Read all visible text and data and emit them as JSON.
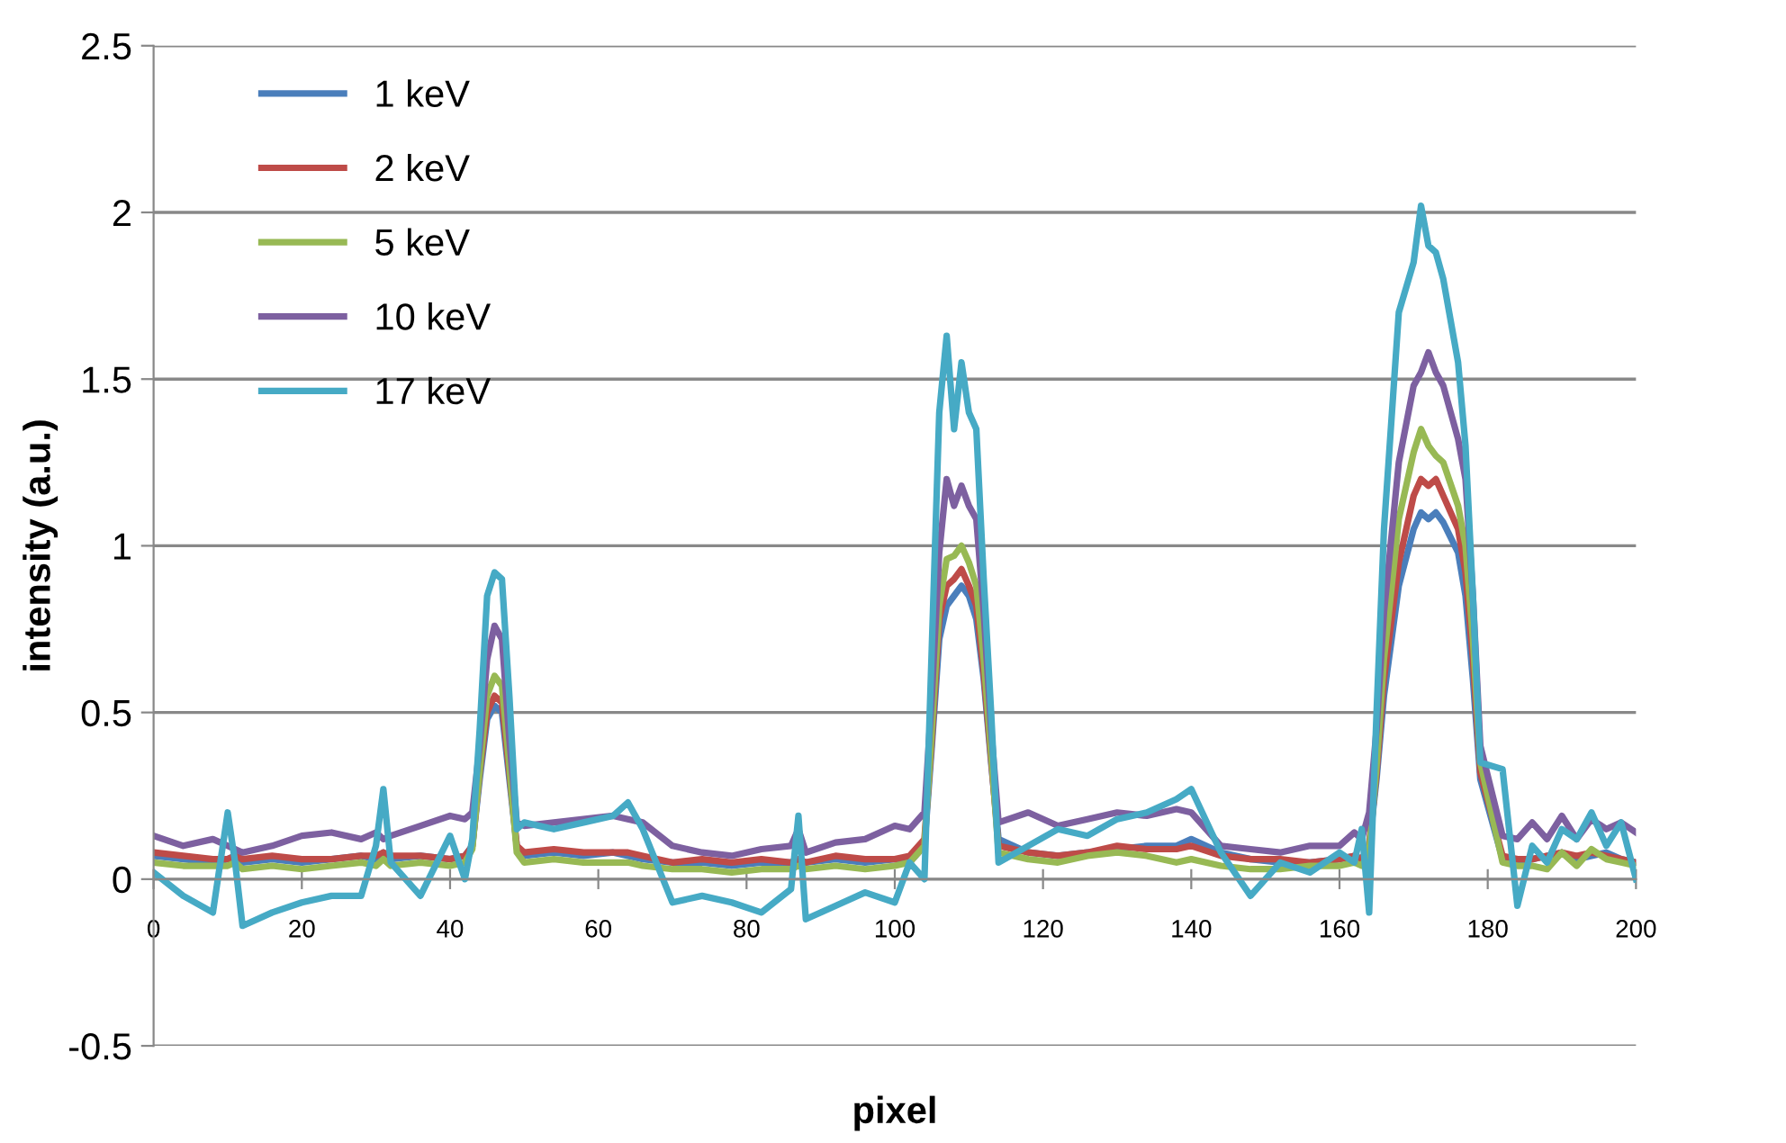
{
  "chart_data": {
    "type": "line",
    "xlabel": "pixel",
    "ylabel": "intensity (a.u.)",
    "x": [
      0,
      4,
      8,
      10,
      11,
      12,
      16,
      20,
      24,
      28,
      30,
      31,
      32,
      36,
      40,
      42,
      43,
      44,
      45,
      46,
      47,
      48,
      49,
      50,
      54,
      58,
      62,
      64,
      66,
      70,
      74,
      78,
      82,
      86,
      87,
      88,
      92,
      96,
      100,
      102,
      104,
      105,
      106,
      107,
      108,
      109,
      110,
      111,
      112,
      113,
      114,
      118,
      122,
      126,
      130,
      134,
      138,
      140,
      144,
      148,
      152,
      156,
      160,
      162,
      163,
      164,
      165,
      166,
      168,
      170,
      171,
      172,
      173,
      174,
      176,
      177,
      178,
      179,
      182,
      184,
      186,
      188,
      190,
      192,
      194,
      196,
      198,
      200
    ],
    "xlim": [
      0,
      200
    ],
    "xticks": [
      0,
      20,
      40,
      60,
      80,
      100,
      120,
      140,
      160,
      180,
      200
    ],
    "ylim": [
      -0.5,
      2.5
    ],
    "yticks": [
      -0.5,
      0,
      0.5,
      1,
      1.5,
      2,
      2.5
    ],
    "grid": "y",
    "legend": "top left",
    "marker": "none",
    "line_style": "solid",
    "series": [
      {
        "name": "1 keV",
        "color": "#4a7ebb",
        "values": [
          0.07,
          0.06,
          0.05,
          0.06,
          0.07,
          0.05,
          0.06,
          0.05,
          0.06,
          0.07,
          0.06,
          0.08,
          0.06,
          0.07,
          0.06,
          0.07,
          0.1,
          0.3,
          0.48,
          0.52,
          0.5,
          0.3,
          0.1,
          0.07,
          0.08,
          0.07,
          0.08,
          0.07,
          0.06,
          0.05,
          0.05,
          0.04,
          0.05,
          0.05,
          0.06,
          0.05,
          0.06,
          0.05,
          0.06,
          0.05,
          0.1,
          0.4,
          0.72,
          0.82,
          0.85,
          0.88,
          0.85,
          0.78,
          0.6,
          0.35,
          0.12,
          0.08,
          0.07,
          0.08,
          0.09,
          0.1,
          0.1,
          0.12,
          0.08,
          0.06,
          0.05,
          0.05,
          0.06,
          0.07,
          0.06,
          0.1,
          0.3,
          0.55,
          0.88,
          1.05,
          1.1,
          1.08,
          1.1,
          1.07,
          0.98,
          0.85,
          0.6,
          0.3,
          0.06,
          0.05,
          0.06,
          0.07,
          0.08,
          0.06,
          0.07,
          0.08,
          0.06,
          0.05
        ]
      },
      {
        "name": "2 keV",
        "color": "#be4b48",
        "values": [
          0.08,
          0.07,
          0.06,
          0.06,
          0.07,
          0.06,
          0.07,
          0.06,
          0.06,
          0.07,
          0.07,
          0.08,
          0.07,
          0.07,
          0.06,
          0.07,
          0.1,
          0.32,
          0.5,
          0.55,
          0.53,
          0.32,
          0.1,
          0.08,
          0.09,
          0.08,
          0.08,
          0.08,
          0.07,
          0.05,
          0.06,
          0.05,
          0.06,
          0.05,
          0.06,
          0.05,
          0.07,
          0.06,
          0.06,
          0.07,
          0.12,
          0.42,
          0.78,
          0.88,
          0.9,
          0.93,
          0.88,
          0.82,
          0.62,
          0.36,
          0.1,
          0.08,
          0.07,
          0.08,
          0.1,
          0.09,
          0.09,
          0.1,
          0.07,
          0.06,
          0.06,
          0.05,
          0.06,
          0.07,
          0.06,
          0.1,
          0.32,
          0.6,
          0.95,
          1.15,
          1.2,
          1.18,
          1.2,
          1.15,
          1.05,
          0.92,
          0.66,
          0.32,
          0.07,
          0.06,
          0.06,
          0.07,
          0.08,
          0.07,
          0.08,
          0.07,
          0.06,
          0.05
        ]
      },
      {
        "name": "5 keV",
        "color": "#98b954",
        "values": [
          0.05,
          0.04,
          0.04,
          0.04,
          0.05,
          0.03,
          0.04,
          0.03,
          0.04,
          0.05,
          0.04,
          0.06,
          0.04,
          0.05,
          0.04,
          0.05,
          0.09,
          0.33,
          0.55,
          0.61,
          0.58,
          0.34,
          0.08,
          0.05,
          0.06,
          0.05,
          0.05,
          0.05,
          0.04,
          0.03,
          0.03,
          0.02,
          0.03,
          0.03,
          0.04,
          0.03,
          0.04,
          0.03,
          0.04,
          0.05,
          0.1,
          0.45,
          0.82,
          0.96,
          0.97,
          1.0,
          0.95,
          0.88,
          0.66,
          0.38,
          0.08,
          0.06,
          0.05,
          0.07,
          0.08,
          0.07,
          0.05,
          0.06,
          0.04,
          0.03,
          0.03,
          0.04,
          0.04,
          0.05,
          0.04,
          0.08,
          0.34,
          0.66,
          1.08,
          1.28,
          1.35,
          1.3,
          1.27,
          1.25,
          1.12,
          1.0,
          0.72,
          0.35,
          0.05,
          0.04,
          0.04,
          0.03,
          0.08,
          0.04,
          0.09,
          0.06,
          0.05,
          0.04
        ]
      },
      {
        "name": "10 keV",
        "color": "#7d60a0",
        "values": [
          0.13,
          0.1,
          0.12,
          0.1,
          0.09,
          0.08,
          0.1,
          0.13,
          0.14,
          0.12,
          0.14,
          0.12,
          0.13,
          0.16,
          0.19,
          0.18,
          0.2,
          0.4,
          0.66,
          0.76,
          0.72,
          0.42,
          0.17,
          0.16,
          0.17,
          0.18,
          0.19,
          0.18,
          0.17,
          0.1,
          0.08,
          0.07,
          0.09,
          0.1,
          0.15,
          0.08,
          0.11,
          0.12,
          0.16,
          0.15,
          0.2,
          0.55,
          0.98,
          1.2,
          1.12,
          1.18,
          1.12,
          1.08,
          0.8,
          0.45,
          0.17,
          0.2,
          0.16,
          0.18,
          0.2,
          0.19,
          0.21,
          0.2,
          0.1,
          0.09,
          0.08,
          0.1,
          0.1,
          0.14,
          0.12,
          0.2,
          0.45,
          0.8,
          1.25,
          1.48,
          1.52,
          1.58,
          1.52,
          1.48,
          1.32,
          1.2,
          0.85,
          0.4,
          0.13,
          0.12,
          0.17,
          0.12,
          0.19,
          0.12,
          0.18,
          0.15,
          0.17,
          0.14
        ]
      },
      {
        "name": "17 keV",
        "color": "#46aac5",
        "values": [
          0.02,
          -0.05,
          -0.1,
          0.2,
          0.05,
          -0.14,
          -0.1,
          -0.07,
          -0.05,
          -0.05,
          0.1,
          0.27,
          0.05,
          -0.05,
          0.13,
          0.0,
          0.12,
          0.45,
          0.85,
          0.92,
          0.9,
          0.55,
          0.15,
          0.17,
          0.15,
          0.17,
          0.19,
          0.23,
          0.15,
          -0.07,
          -0.05,
          -0.07,
          -0.1,
          -0.03,
          0.19,
          -0.12,
          -0.08,
          -0.04,
          -0.07,
          0.05,
          0.0,
          0.7,
          1.4,
          1.63,
          1.35,
          1.55,
          1.4,
          1.35,
          0.9,
          0.5,
          0.05,
          0.1,
          0.15,
          0.13,
          0.18,
          0.2,
          0.24,
          0.27,
          0.08,
          -0.05,
          0.05,
          0.02,
          0.08,
          0.05,
          0.15,
          -0.1,
          0.5,
          1.05,
          1.7,
          1.85,
          2.02,
          1.9,
          1.88,
          1.8,
          1.55,
          1.3,
          0.85,
          0.35,
          0.33,
          -0.08,
          0.1,
          0.05,
          0.15,
          0.12,
          0.2,
          0.1,
          0.17,
          0.0
        ]
      }
    ]
  }
}
